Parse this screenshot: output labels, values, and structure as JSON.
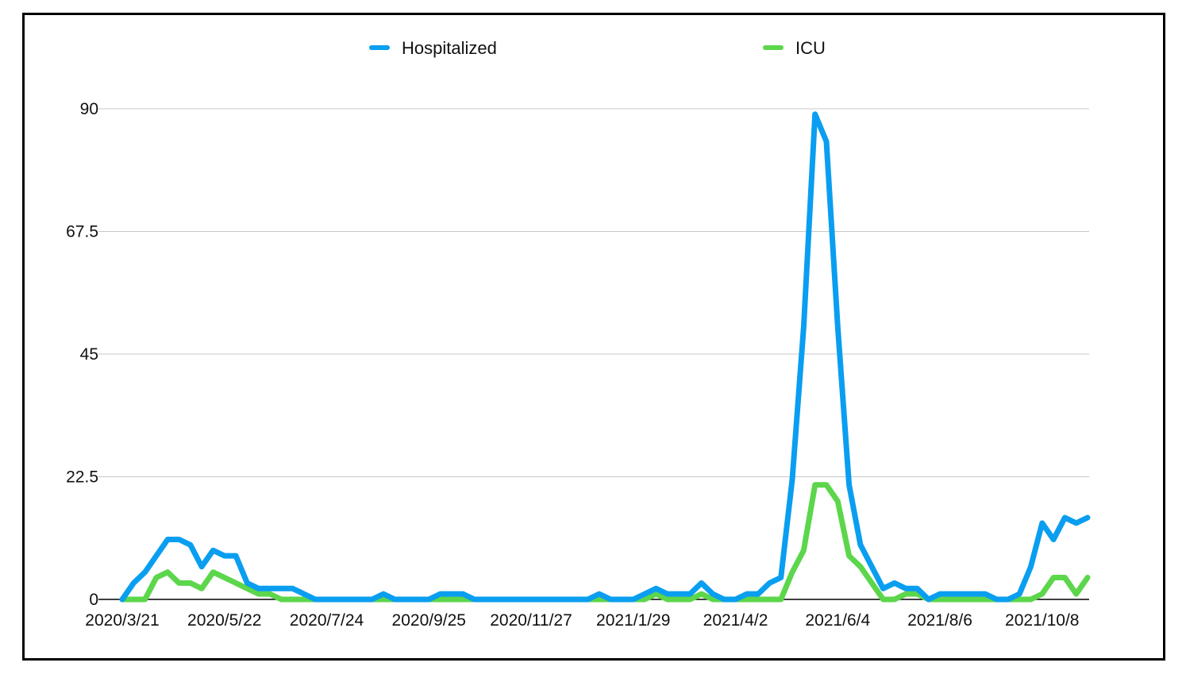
{
  "chart_data": {
    "type": "line",
    "title": "",
    "xlabel": "",
    "ylabel": "",
    "ylim": [
      0,
      90
    ],
    "yticks": [
      "0",
      "22.5",
      "45",
      "67.5",
      "90"
    ],
    "xtick_labels": [
      "2020/3/21",
      "2020/5/22",
      "2020/7/24",
      "2020/9/25",
      "2020/11/27",
      "2021/1/29",
      "2021/4/2",
      "2021/6/4",
      "2021/8/6",
      "2021/10/8"
    ],
    "grid": "horizontal",
    "legend": "top-center",
    "x_start_date": "2020/3/21",
    "x_interval_days": 7,
    "series": [
      {
        "name": "Hospitalized",
        "color": "#0a9ef0",
        "values": [
          0,
          3,
          5,
          8,
          11,
          11,
          10,
          6,
          9,
          8,
          8,
          3,
          2,
          2,
          2,
          2,
          1,
          0,
          0,
          0,
          0,
          0,
          0,
          1,
          0,
          0,
          0,
          0,
          1,
          1,
          1,
          0,
          0,
          0,
          0,
          0,
          0,
          0,
          0,
          0,
          0,
          0,
          1,
          0,
          0,
          0,
          1,
          2,
          1,
          1,
          1,
          3,
          1,
          0,
          0,
          1,
          1,
          3,
          4,
          22,
          50,
          89,
          84,
          50,
          21,
          10,
          6,
          2,
          3,
          2,
          2,
          0,
          1,
          1,
          1,
          1,
          1,
          0,
          0,
          1,
          6,
          14,
          11,
          15,
          14,
          15
        ]
      },
      {
        "name": "ICU",
        "color": "#5cd64b",
        "values": [
          0,
          0,
          0,
          4,
          5,
          3,
          3,
          2,
          5,
          4,
          3,
          2,
          1,
          1,
          0,
          0,
          0,
          0,
          0,
          0,
          0,
          0,
          0,
          0,
          0,
          0,
          0,
          0,
          0,
          0,
          0,
          0,
          0,
          0,
          0,
          0,
          0,
          0,
          0,
          0,
          0,
          0,
          0,
          0,
          0,
          0,
          0,
          1,
          0,
          0,
          0,
          1,
          0,
          0,
          0,
          0,
          0,
          0,
          0,
          5,
          9,
          21,
          21,
          18,
          8,
          6,
          3,
          0,
          0,
          1,
          1,
          0,
          0,
          0,
          0,
          0,
          0,
          0,
          0,
          0,
          0,
          1,
          4,
          4,
          1,
          4
        ]
      }
    ]
  }
}
